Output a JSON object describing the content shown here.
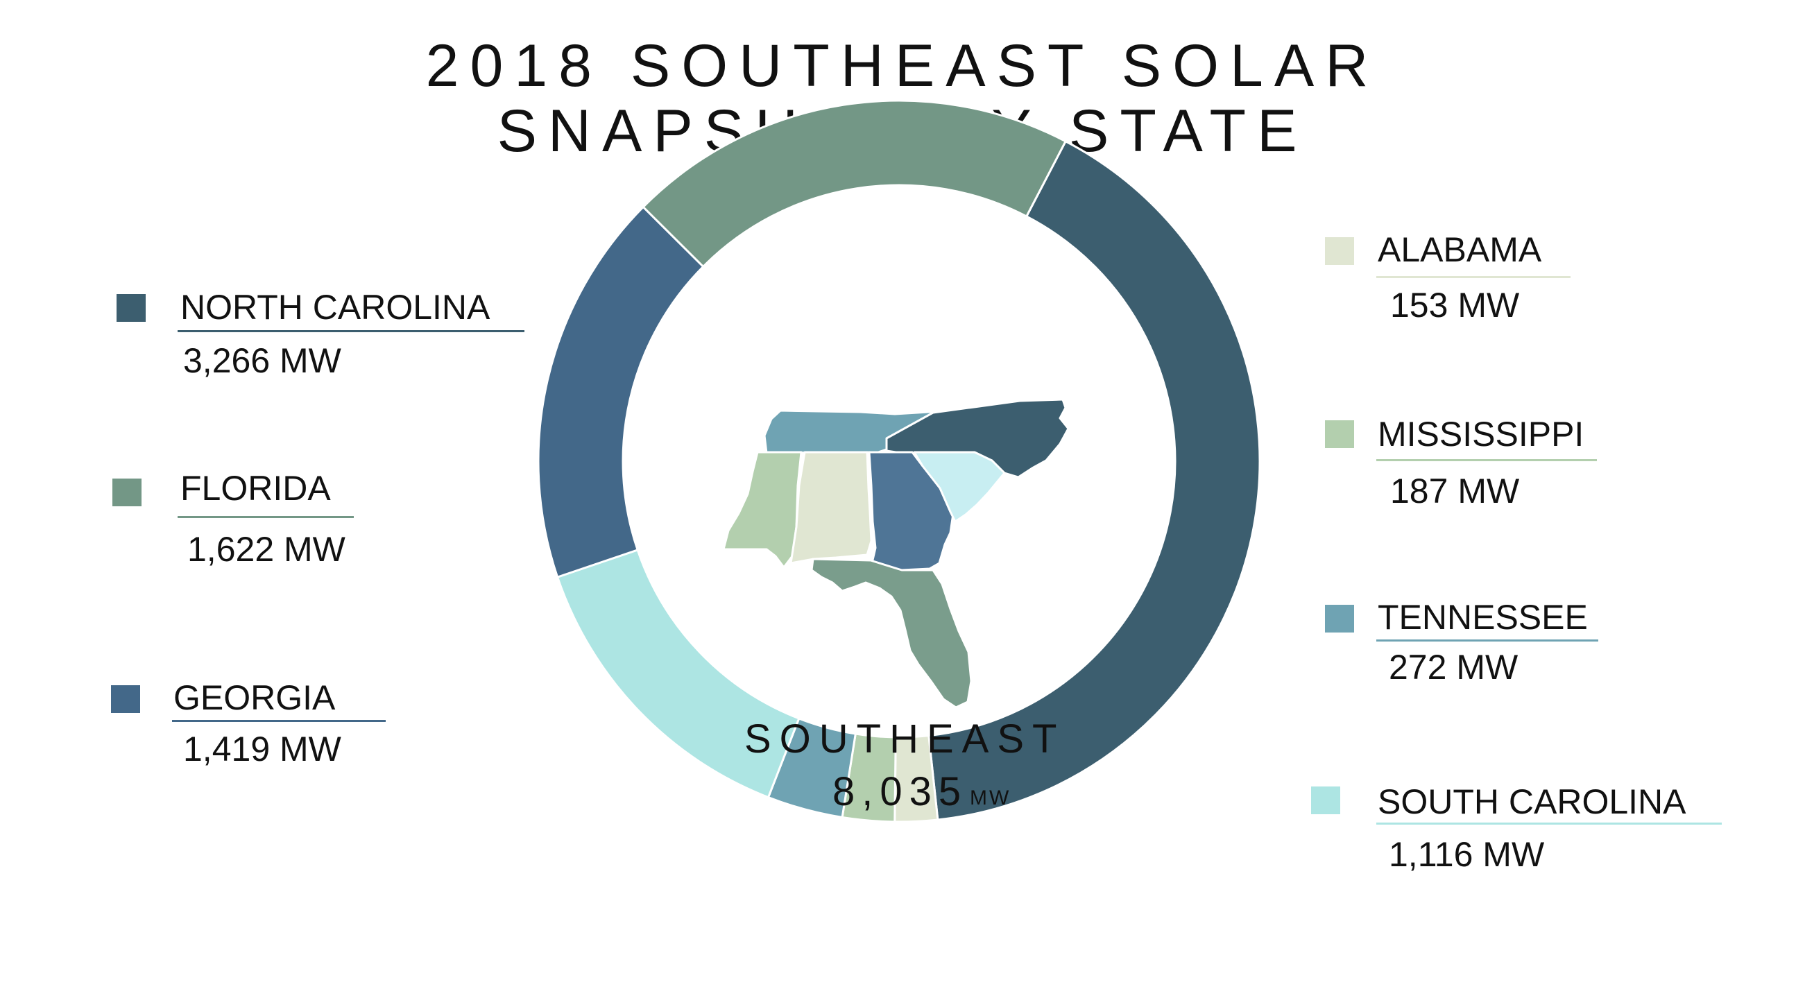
{
  "title_line1": "2018 SOUTHEAST SOLAR",
  "title_line2": "SNAPSHOT BY STATE",
  "center": {
    "label": "SOUTHEAST",
    "value": "8,035",
    "unit": "MW"
  },
  "legend": [
    {
      "name": "NORTH CAROLINA",
      "value": "3,266 MW",
      "color": "#3c5e6f"
    },
    {
      "name": "FLORIDA",
      "value": "1,622 MW",
      "color": "#739786"
    },
    {
      "name": "GEORGIA",
      "value": "1,419 MW",
      "color": "#436889"
    },
    {
      "name": "ALABAMA",
      "value": "153 MW",
      "color": "#e0e6d2"
    },
    {
      "name": "MISSISSIPPI",
      "value": "187 MW",
      "color": "#b3cfae"
    },
    {
      "name": "TENNESSEE",
      "value": "272 MW",
      "color": "#6fa3b3"
    },
    {
      "name": "SOUTH CAROLINA",
      "value": "1,116 MW",
      "color": "#ade5e3"
    }
  ],
  "chart_data": {
    "type": "pie",
    "title": "2018 SOUTHEAST SOLAR SNAPSHOT BY STATE",
    "unit": "MW",
    "total": 8035,
    "categories": [
      "NORTH CAROLINA",
      "ALABAMA",
      "MISSISSIPPI",
      "TENNESSEE",
      "SOUTH CAROLINA",
      "GEORGIA",
      "FLORIDA"
    ],
    "values": [
      3266,
      153,
      187,
      272,
      1116,
      1419,
      1622
    ],
    "colors": [
      "#3c5e6f",
      "#e0e6d2",
      "#b3cfae",
      "#6fa3b3",
      "#ade5e3",
      "#436889",
      "#739786"
    ]
  },
  "map": {
    "states": [
      {
        "name": "Tennessee",
        "color": "#6fa3b3"
      },
      {
        "name": "North Carolina",
        "color": "#3c5e6f"
      },
      {
        "name": "Mississippi",
        "color": "#b3cfae"
      },
      {
        "name": "Alabama",
        "color": "#e0e6d2"
      },
      {
        "name": "Georgia",
        "color": "#4f7596"
      },
      {
        "name": "South Carolina",
        "color": "#c8eef2"
      },
      {
        "name": "Florida",
        "color": "#7a9d8c"
      }
    ]
  }
}
